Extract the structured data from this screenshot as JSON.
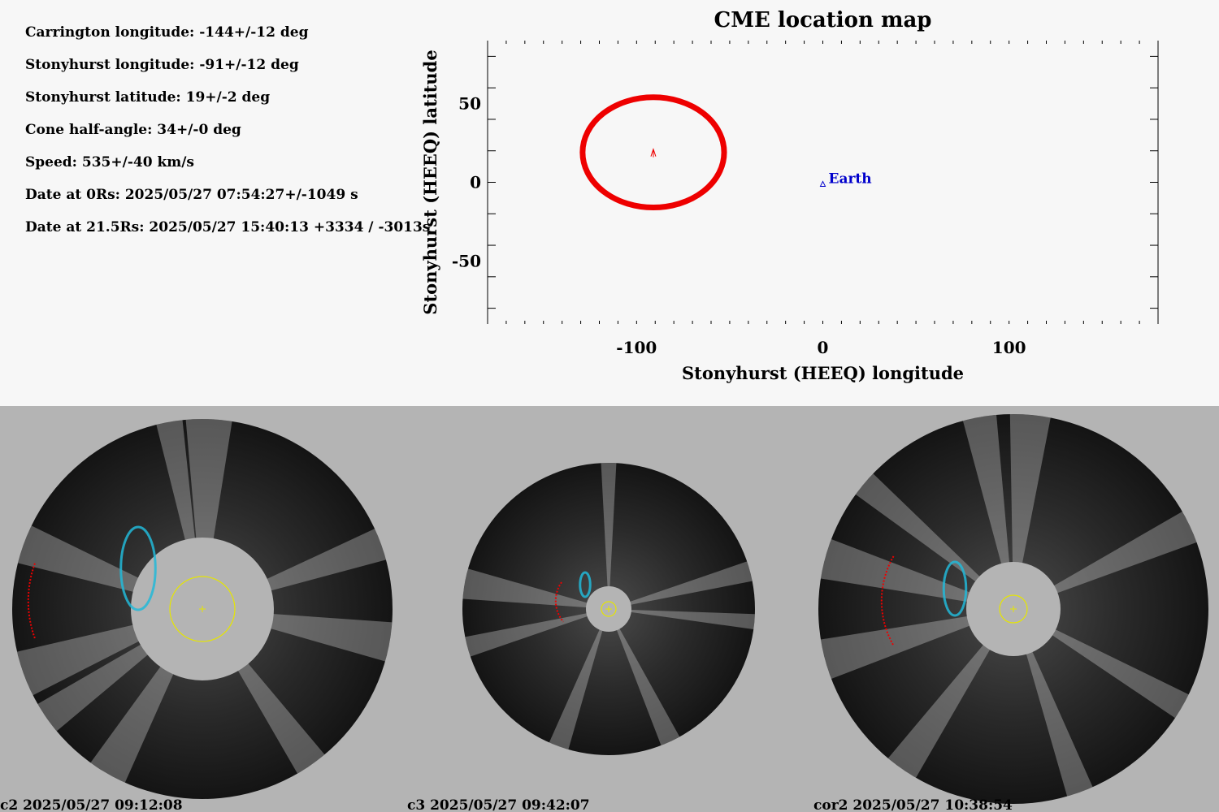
{
  "parameters": [
    "Carrington longitude: -144+/-12 deg",
    "Stonyhurst longitude: -91+/-12 deg",
    "Stonyhurst latitude: 19+/-2 deg",
    "Cone half-angle: 34+/-0 deg",
    "Speed: 535+/-40 km/s",
    "Date at 0Rs: 2025/05/27 07:54:27+/-1049 s",
    "Date at 21.5Rs: 2025/05/27 15:40:13 +3334 / -3013s"
  ],
  "chart_data": {
    "type": "scatter",
    "title": "CME location map",
    "xlabel": "Stonyhurst (HEEQ) longitude",
    "ylabel": "Stonyhurst (HEEQ) latitude",
    "xlim": [
      -180,
      180
    ],
    "ylim": [
      -90,
      90
    ],
    "xticks": [
      -100,
      0,
      100
    ],
    "yticks": [
      50,
      0,
      -50
    ],
    "grid": false,
    "cme_cone": {
      "center_lon": -91,
      "center_lat": 19,
      "lon_extent": [
        -129,
        -53
      ],
      "lat_extent": [
        -16,
        54
      ],
      "color": "#ee0000"
    },
    "earth": {
      "label": "Earth",
      "lon": 0,
      "lat": -1,
      "color": "#0000cc"
    }
  },
  "panels": [
    {
      "label": "c2 2025/05/27 09:12:08"
    },
    {
      "label": "c3 2025/05/27 09:42:07"
    },
    {
      "label": "cor2 2025/05/27 10:38:54"
    }
  ],
  "colors": {
    "background_top": "#f7f7f7",
    "background_bottom": "#b4b4b4",
    "cme_fit": "#ee0000",
    "sun_outline": "#e6e600"
  }
}
